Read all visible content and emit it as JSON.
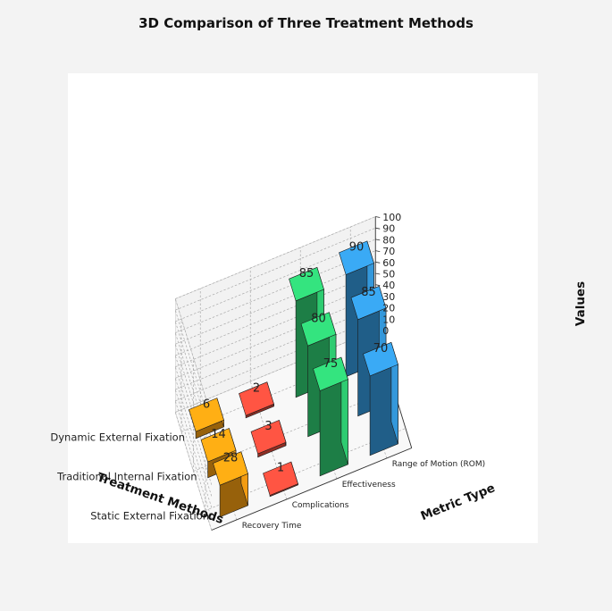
{
  "chart_data": {
    "type": "bar",
    "subtype": "3d-bar",
    "title": "3D Comparison of Three Treatment Methods",
    "xlabel": "Treatment Methods",
    "ylabel": "Metric Type",
    "zlabel": "Values",
    "zlim": [
      0,
      100
    ],
    "zticks": [
      0,
      10,
      20,
      30,
      40,
      50,
      60,
      70,
      80,
      90,
      100
    ],
    "grid": true,
    "categories": [
      "Static External Fixation",
      "Traditional Internal Fixation",
      "Dynamic External Fixation"
    ],
    "metrics": [
      "Recovery Time",
      "Complications",
      "Effectiveness",
      "Range of Motion (ROM)"
    ],
    "series": [
      {
        "values": [
          28,
          14,
          6
        ],
        "color": "#f39c12"
      },
      {
        "values": [
          1,
          3,
          2
        ],
        "color": "#e74c3c"
      },
      {
        "values": [
          75,
          80,
          85
        ],
        "color": "#2ecc71"
      },
      {
        "values": [
          70,
          85,
          90
        ],
        "color": "#3498db"
      }
    ]
  }
}
